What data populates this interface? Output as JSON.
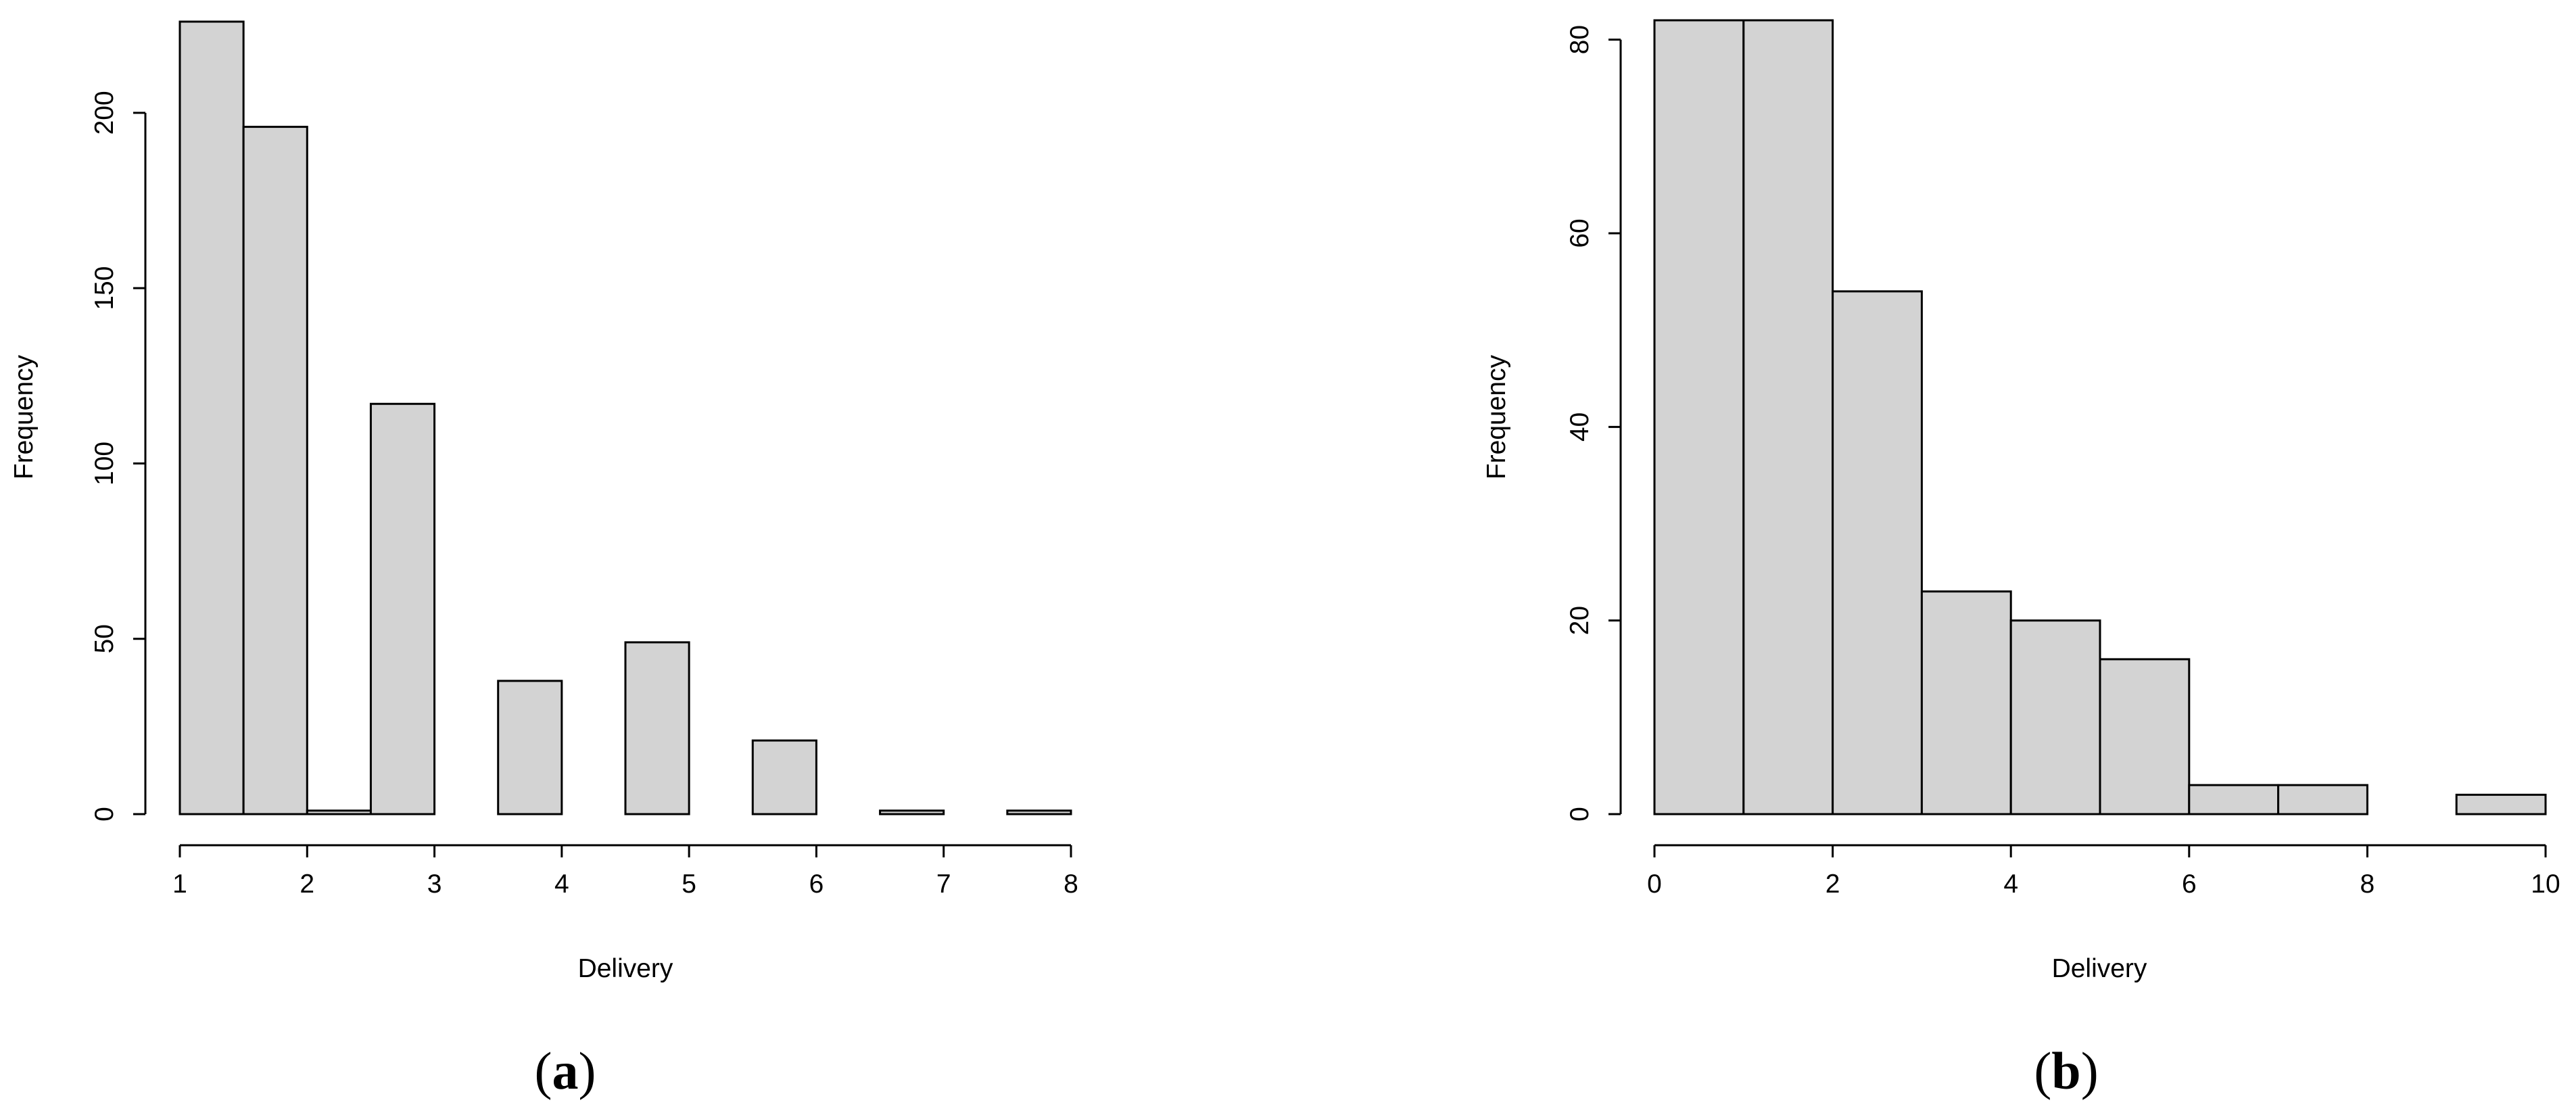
{
  "colors": {
    "bar_fill": "#d3d3d3",
    "bar_stroke": "#000000",
    "axis": "#000000",
    "background": "#ffffff"
  },
  "chart_data": [
    {
      "type": "bar",
      "panel": "a",
      "title": "",
      "xlabel": "Delivery",
      "ylabel": "Frequency",
      "bin_edges": [
        1,
        1.5,
        2,
        2.5,
        3,
        3.5,
        4,
        4.5,
        5,
        5.5,
        6,
        6.5,
        7,
        7.5,
        8
      ],
      "values": [
        226,
        196,
        1,
        117,
        0,
        38,
        0,
        49,
        0,
        21,
        0,
        1,
        0,
        1
      ],
      "xlim": [
        1,
        8
      ],
      "ylim": [
        0,
        226
      ],
      "x_ticks": [
        1,
        2,
        3,
        4,
        5,
        6,
        7,
        8
      ],
      "y_ticks": [
        0,
        50,
        100,
        150,
        200
      ],
      "grid": false
    },
    {
      "type": "bar",
      "panel": "b",
      "title": "",
      "xlabel": "Delivery",
      "ylabel": "Frequency",
      "bin_edges": [
        0,
        1,
        2,
        3,
        4,
        5,
        6,
        7,
        8,
        9,
        10
      ],
      "values": [
        82,
        82,
        54,
        23,
        20,
        16,
        3,
        3,
        0,
        2
      ],
      "xlim": [
        0,
        10
      ],
      "ylim": [
        0,
        82
      ],
      "x_ticks": [
        0,
        2,
        4,
        6,
        8,
        10
      ],
      "y_ticks": [
        0,
        20,
        40,
        60,
        80
      ],
      "grid": false
    }
  ],
  "panel_labels": [
    {
      "open": "(",
      "letter": "a",
      "close": ")"
    },
    {
      "open": "(",
      "letter": "b",
      "close": ")"
    }
  ]
}
